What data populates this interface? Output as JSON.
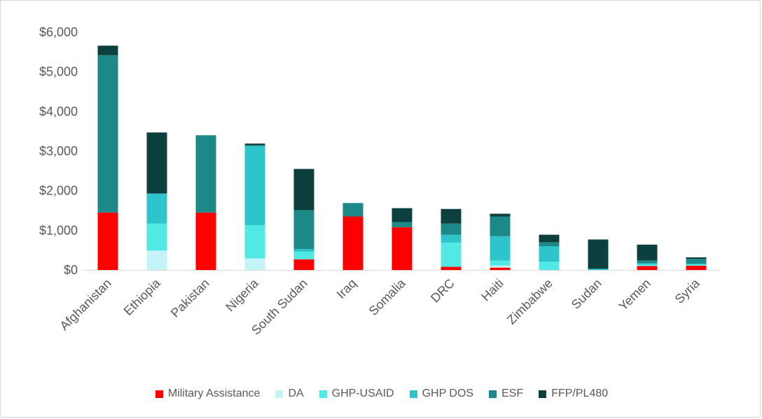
{
  "chart_data": {
    "type": "bar",
    "stacked": true,
    "title": "",
    "xlabel": "",
    "ylabel": "",
    "ylim": [
      0,
      6000
    ],
    "yticks": [
      0,
      1000,
      2000,
      3000,
      4000,
      5000,
      6000
    ],
    "ytick_labels": [
      "$0",
      "$1,000",
      "$2,000",
      "$3,000",
      "$4,000",
      "$5,000",
      "$6,000"
    ],
    "grid": false,
    "legend_position": "bottom",
    "categories": [
      "Afghanistan",
      "Ethiopia",
      "Pakistan",
      "Nigeria",
      "South Sudan",
      "Iraq",
      "Somalia",
      "DRC",
      "Haiti",
      "Zimbabwe",
      "Sudan",
      "Yemen",
      "Syria"
    ],
    "series": [
      {
        "name": "Military Assistance",
        "color": "#ff0000",
        "values": [
          1450,
          0,
          1450,
          0,
          270,
          1350,
          1080,
          80,
          60,
          0,
          0,
          100,
          110
        ]
      },
      {
        "name": "DA",
        "color": "#c4f4f7",
        "values": [
          0,
          490,
          0,
          290,
          0,
          0,
          0,
          0,
          50,
          0,
          0,
          0,
          0
        ]
      },
      {
        "name": "GHP-USAID",
        "color": "#52e9e4",
        "values": [
          0,
          680,
          0,
          840,
          190,
          0,
          0,
          610,
          130,
          210,
          0,
          40,
          30
        ]
      },
      {
        "name": "GHP DOS",
        "color": "#2ec4cc",
        "values": [
          0,
          760,
          0,
          2000,
          70,
          0,
          0,
          200,
          610,
          390,
          30,
          30,
          20
        ]
      },
      {
        "name": "ESF",
        "color": "#1c8888",
        "values": [
          3970,
          0,
          1950,
          20,
          980,
          340,
          130,
          280,
          500,
          100,
          0,
          70,
          120
        ]
      },
      {
        "name": "FFP/PL480",
        "color": "#0c403f",
        "values": [
          240,
          1540,
          0,
          40,
          1040,
          0,
          350,
          370,
          70,
          190,
          740,
          400,
          40
        ]
      }
    ]
  }
}
